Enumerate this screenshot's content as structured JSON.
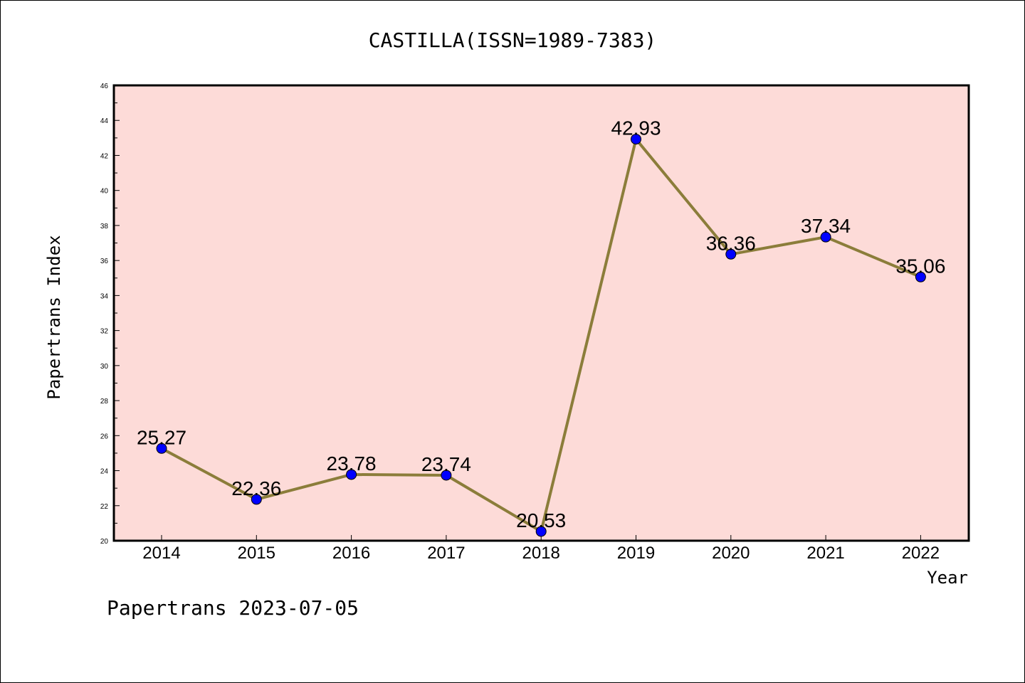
{
  "chart_data": {
    "type": "line",
    "title": "CASTILLA(ISSN=1989-7383)",
    "xlabel": "Year",
    "ylabel": "Papertrans Index",
    "categories": [
      "2014",
      "2015",
      "2016",
      "2017",
      "2018",
      "2019",
      "2020",
      "2021",
      "2022"
    ],
    "series": [
      {
        "values": [
          25.27,
          22.36,
          23.78,
          23.74,
          20.53,
          42.93,
          36.36,
          37.34,
          35.06
        ]
      }
    ],
    "data_labels": [
      "25.27",
      "22.36",
      "23.78",
      "23.74",
      "20.53",
      "42.93",
      "36.36",
      "37.34",
      "35.06"
    ],
    "yticks": [
      "20",
      "22",
      "24",
      "26",
      "28",
      "30",
      "32",
      "34",
      "36",
      "38",
      "40",
      "42",
      "44",
      "46"
    ],
    "ylim": [
      20,
      46
    ],
    "grid": false,
    "colors": {
      "plot_background": "#fddbd8",
      "line": "#8b7d3a",
      "marker": "#0000ff"
    }
  },
  "footer": "Papertrans 2023-07-05"
}
